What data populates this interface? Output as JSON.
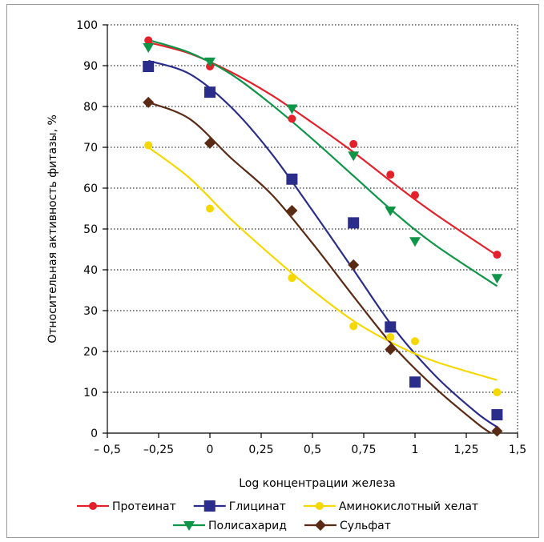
{
  "chart_data": {
    "type": "scatter",
    "xlabel": "Log концентрации железа",
    "ylabel": "Относительная активность фитазы, %",
    "xlim": [
      -0.5,
      1.5
    ],
    "ylim": [
      0,
      100
    ],
    "x_ticks": [
      -0.5,
      -0.25,
      0,
      0.25,
      0.5,
      0.75,
      1,
      1.25,
      1.5
    ],
    "x_tick_labels": [
      "– 0,5",
      "–0,25",
      "0",
      "0,25",
      "0,5",
      "0,75",
      "1",
      "1,25",
      "1,5"
    ],
    "y_ticks": [
      0,
      10,
      20,
      30,
      40,
      50,
      60,
      70,
      80,
      90,
      100
    ],
    "y_tick_labels": [
      "0",
      "10",
      "20",
      "30",
      "40",
      "50",
      "60",
      "70",
      "80",
      "90",
      "100"
    ],
    "grid": "horizontal dotted",
    "legend_position": "bottom",
    "series": [
      {
        "name": "Протеинат",
        "color": "#e4202a",
        "marker": "circle",
        "points": [
          [
            -0.3,
            96.2
          ],
          [
            0,
            89.8
          ],
          [
            0.4,
            77.0
          ],
          [
            0.7,
            70.8
          ],
          [
            0.88,
            63.3
          ],
          [
            1.0,
            58.3
          ],
          [
            1.4,
            43.7
          ]
        ],
        "trend": [
          [
            -0.3,
            95.7
          ],
          [
            -0.1,
            93.0
          ],
          [
            0.1,
            88.5
          ],
          [
            0.3,
            82.8
          ],
          [
            0.5,
            76.0
          ],
          [
            0.7,
            68.8
          ],
          [
            0.9,
            61.0
          ],
          [
            1.1,
            53.6
          ],
          [
            1.4,
            43.5
          ]
        ]
      },
      {
        "name": "Глицинат",
        "color": "#2b2d8a",
        "marker": "square",
        "points": [
          [
            -0.3,
            89.8
          ],
          [
            0,
            83.5
          ],
          [
            0.4,
            62.2
          ],
          [
            0.7,
            51.5
          ],
          [
            0.88,
            26.0
          ],
          [
            1.0,
            12.5
          ],
          [
            1.4,
            4.5
          ]
        ],
        "trend": [
          [
            -0.3,
            91.2
          ],
          [
            -0.1,
            88.0
          ],
          [
            0.1,
            80.0
          ],
          [
            0.3,
            68.5
          ],
          [
            0.5,
            54.5
          ],
          [
            0.7,
            40.0
          ],
          [
            0.9,
            25.5
          ],
          [
            1.1,
            14.0
          ],
          [
            1.3,
            5.0
          ],
          [
            1.4,
            1.5
          ]
        ]
      },
      {
        "name": "Аминокислотный хелат",
        "color": "#f5d800",
        "marker": "circle",
        "points": [
          [
            -0.3,
            70.5
          ],
          [
            0,
            55.0
          ],
          [
            0.4,
            38.0
          ],
          [
            0.7,
            26.2
          ],
          [
            0.88,
            23.5
          ],
          [
            1.0,
            22.5
          ],
          [
            1.4,
            10.0
          ]
        ],
        "trend": [
          [
            -0.3,
            70.0
          ],
          [
            -0.1,
            62.5
          ],
          [
            0.1,
            52.5
          ],
          [
            0.3,
            43.5
          ],
          [
            0.5,
            35.0
          ],
          [
            0.7,
            27.5
          ],
          [
            0.9,
            21.8
          ],
          [
            1.1,
            17.5
          ],
          [
            1.4,
            13.0
          ]
        ]
      },
      {
        "name": "Полисахарид",
        "color": "#0e9548",
        "marker": "triangle-down",
        "points": [
          [
            -0.3,
            94.5
          ],
          [
            0,
            91.0
          ],
          [
            0.4,
            79.5
          ],
          [
            0.7,
            68.0
          ],
          [
            0.88,
            54.5
          ],
          [
            1.0,
            47.0
          ],
          [
            1.4,
            38.0
          ]
        ],
        "trend": [
          [
            -0.3,
            96.3
          ],
          [
            -0.1,
            93.2
          ],
          [
            0.1,
            88.0
          ],
          [
            0.3,
            80.5
          ],
          [
            0.5,
            72.0
          ],
          [
            0.7,
            63.0
          ],
          [
            0.9,
            54.0
          ],
          [
            1.1,
            46.0
          ],
          [
            1.4,
            36.0
          ]
        ]
      },
      {
        "name": "Сульфат",
        "color": "#5a2a14",
        "marker": "diamond",
        "points": [
          [
            -0.3,
            81.0
          ],
          [
            0,
            71.0
          ],
          [
            0.4,
            54.5
          ],
          [
            0.7,
            41.2
          ],
          [
            0.88,
            20.5
          ],
          [
            1.4,
            0.5
          ]
        ],
        "trend": [
          [
            -0.3,
            81.0
          ],
          [
            -0.1,
            77.0
          ],
          [
            0.1,
            67.5
          ],
          [
            0.3,
            58.5
          ],
          [
            0.5,
            46.5
          ],
          [
            0.7,
            33.5
          ],
          [
            0.9,
            21.0
          ],
          [
            1.1,
            11.0
          ],
          [
            1.3,
            2.5
          ],
          [
            1.37,
            0
          ]
        ]
      }
    ],
    "legend_rows": [
      [
        "Протеинат",
        "Глицинат",
        "Аминокислотный хелат"
      ],
      [
        "Полисахарид",
        "Сульфат"
      ]
    ]
  }
}
